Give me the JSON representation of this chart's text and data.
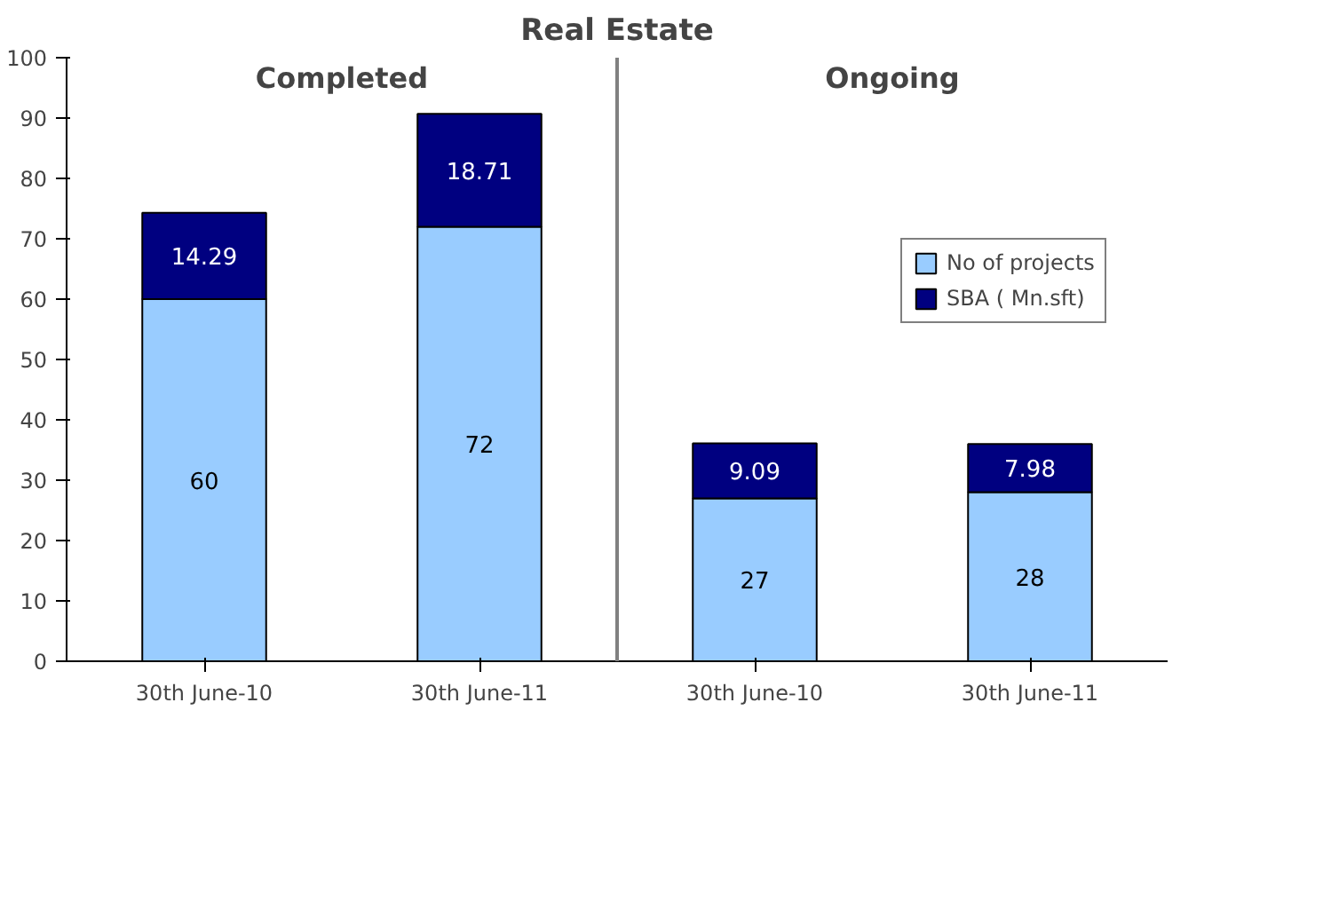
{
  "chart_data": {
    "type": "bar",
    "title": "Real Estate",
    "stacked": true,
    "data_labels": true,
    "categories": [
      "30th June-10",
      "30th June-11",
      "30th June-10",
      "30th June-11"
    ],
    "series": [
      {
        "name": "No of projects",
        "color": "#99ccff",
        "values": [
          60,
          72,
          27,
          28
        ]
      },
      {
        "name": "SBA ( Mn.sft)",
        "color": "#000080",
        "values": [
          14.29,
          18.71,
          9.09,
          7.98
        ]
      }
    ],
    "ylim": [
      0,
      100
    ],
    "yticks": [
      0,
      10,
      20,
      30,
      40,
      50,
      60,
      70,
      80,
      90,
      100
    ],
    "annotations": [
      "Completed",
      "Ongoing"
    ],
    "grid": false,
    "legend": "right"
  }
}
